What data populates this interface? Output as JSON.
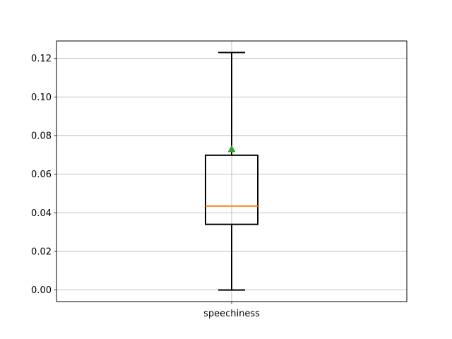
{
  "chart_data": {
    "type": "box",
    "categories": [
      "speechiness"
    ],
    "boxes": [
      {
        "label": "speechiness",
        "whisker_low": 0.0,
        "q1": 0.034,
        "median": 0.0435,
        "mean": 0.073,
        "q3": 0.0698,
        "whisker_high": 0.123
      }
    ],
    "ylim": [
      -0.006,
      0.129
    ],
    "yticks": [
      0.0,
      0.02,
      0.04,
      0.06,
      0.08,
      0.1,
      0.12
    ],
    "ytick_labels": [
      "0.00",
      "0.02",
      "0.04",
      "0.06",
      "0.08",
      "0.10",
      "0.12"
    ],
    "grid": true,
    "title": "",
    "xlabel": "",
    "ylabel": "",
    "colors": {
      "box": "#000000",
      "median": "#ff7f0e",
      "mean": "#2ca02c",
      "grid": "#b0b0b0"
    }
  }
}
